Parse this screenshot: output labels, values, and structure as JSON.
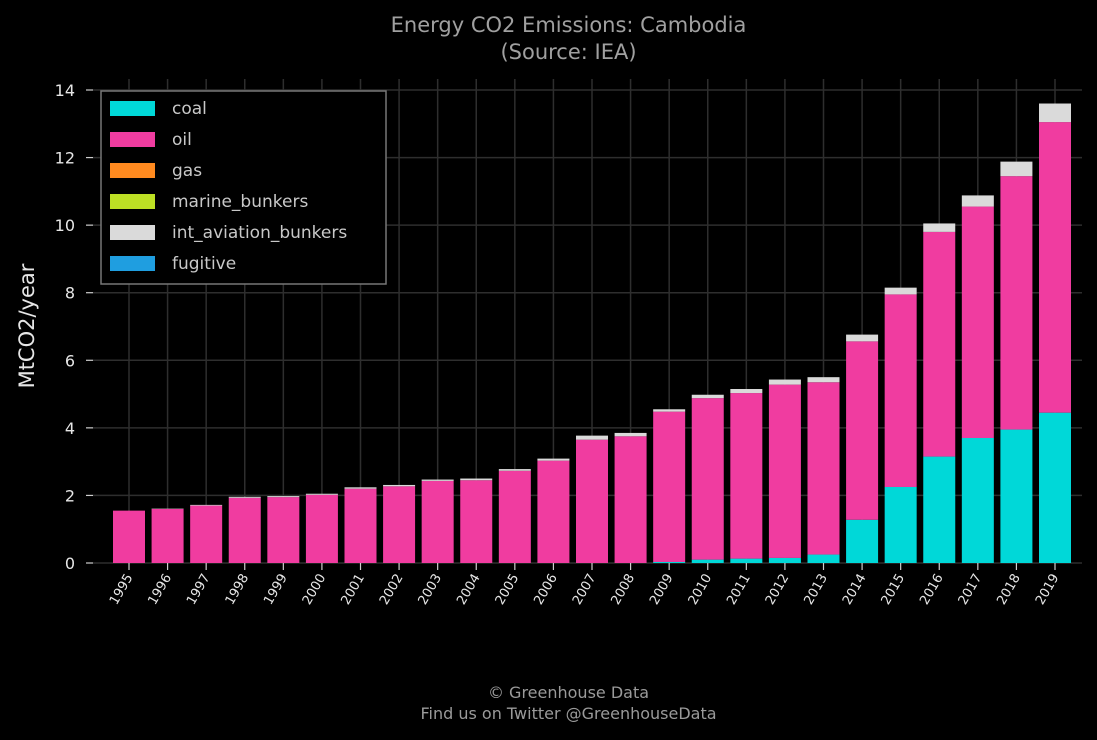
{
  "title_line1": "Energy CO2 Emissions: Cambodia",
  "title_line2": "(Source: IEA)",
  "footer_line1": "© Greenhouse Data",
  "footer_line2": "Find us on Twitter @GreenhouseData",
  "chart_data": {
    "type": "bar",
    "stacked": true,
    "title": "Energy CO2 Emissions: Cambodia",
    "subtitle": "(Source: IEA)",
    "ylabel": "MtCO2/year",
    "xlabel": "",
    "ylim": [
      0,
      14
    ],
    "yticks": [
      0,
      2,
      4,
      6,
      8,
      10,
      12,
      14
    ],
    "grid": true,
    "legend_position": "top-left",
    "categories": [
      "1995",
      "1996",
      "1997",
      "1998",
      "1999",
      "2000",
      "2001",
      "2002",
      "2003",
      "2004",
      "2005",
      "2006",
      "2007",
      "2008",
      "2009",
      "2010",
      "2011",
      "2012",
      "2013",
      "2014",
      "2015",
      "2016",
      "2017",
      "2018",
      "2019"
    ],
    "series": [
      {
        "name": "coal",
        "color": "#00d8d8",
        "values": [
          0,
          0,
          0,
          0,
          0,
          0,
          0,
          0,
          0,
          0,
          0,
          0,
          0,
          0,
          0.03,
          0.1,
          0.13,
          0.15,
          0.25,
          1.28,
          2.25,
          3.15,
          3.7,
          3.95,
          4.45
        ]
      },
      {
        "name": "oil",
        "color": "#f03ca0",
        "values": [
          1.55,
          1.6,
          1.7,
          1.93,
          1.95,
          2.02,
          2.2,
          2.27,
          2.43,
          2.45,
          2.73,
          3.03,
          3.65,
          3.75,
          4.45,
          4.78,
          4.9,
          5.13,
          5.1,
          5.28,
          5.7,
          6.65,
          6.85,
          7.5,
          8.6
        ]
      },
      {
        "name": "gas",
        "color": "#ff8a1f",
        "values": [
          0,
          0,
          0,
          0,
          0,
          0,
          0,
          0,
          0,
          0,
          0,
          0,
          0,
          0,
          0,
          0,
          0,
          0,
          0,
          0,
          0,
          0,
          0,
          0,
          0
        ]
      },
      {
        "name": "marine_bunkers",
        "color": "#bde024",
        "values": [
          0,
          0,
          0,
          0,
          0,
          0,
          0,
          0,
          0,
          0,
          0,
          0,
          0,
          0,
          0,
          0,
          0,
          0,
          0,
          0,
          0,
          0,
          0,
          0,
          0
        ]
      },
      {
        "name": "int_aviation_bunkers",
        "color": "#dadada",
        "values": [
          0,
          0.01,
          0.02,
          0.03,
          0.03,
          0.03,
          0.04,
          0.04,
          0.04,
          0.05,
          0.05,
          0.06,
          0.12,
          0.1,
          0.07,
          0.1,
          0.12,
          0.15,
          0.15,
          0.2,
          0.2,
          0.25,
          0.33,
          0.43,
          0.55
        ]
      },
      {
        "name": "fugitive",
        "color": "#1f9ee0",
        "values": [
          0,
          0,
          0,
          0,
          0,
          0,
          0,
          0,
          0,
          0,
          0,
          0,
          0,
          0,
          0,
          0,
          0,
          0,
          0,
          0,
          0,
          0,
          0,
          0,
          0
        ]
      }
    ]
  }
}
